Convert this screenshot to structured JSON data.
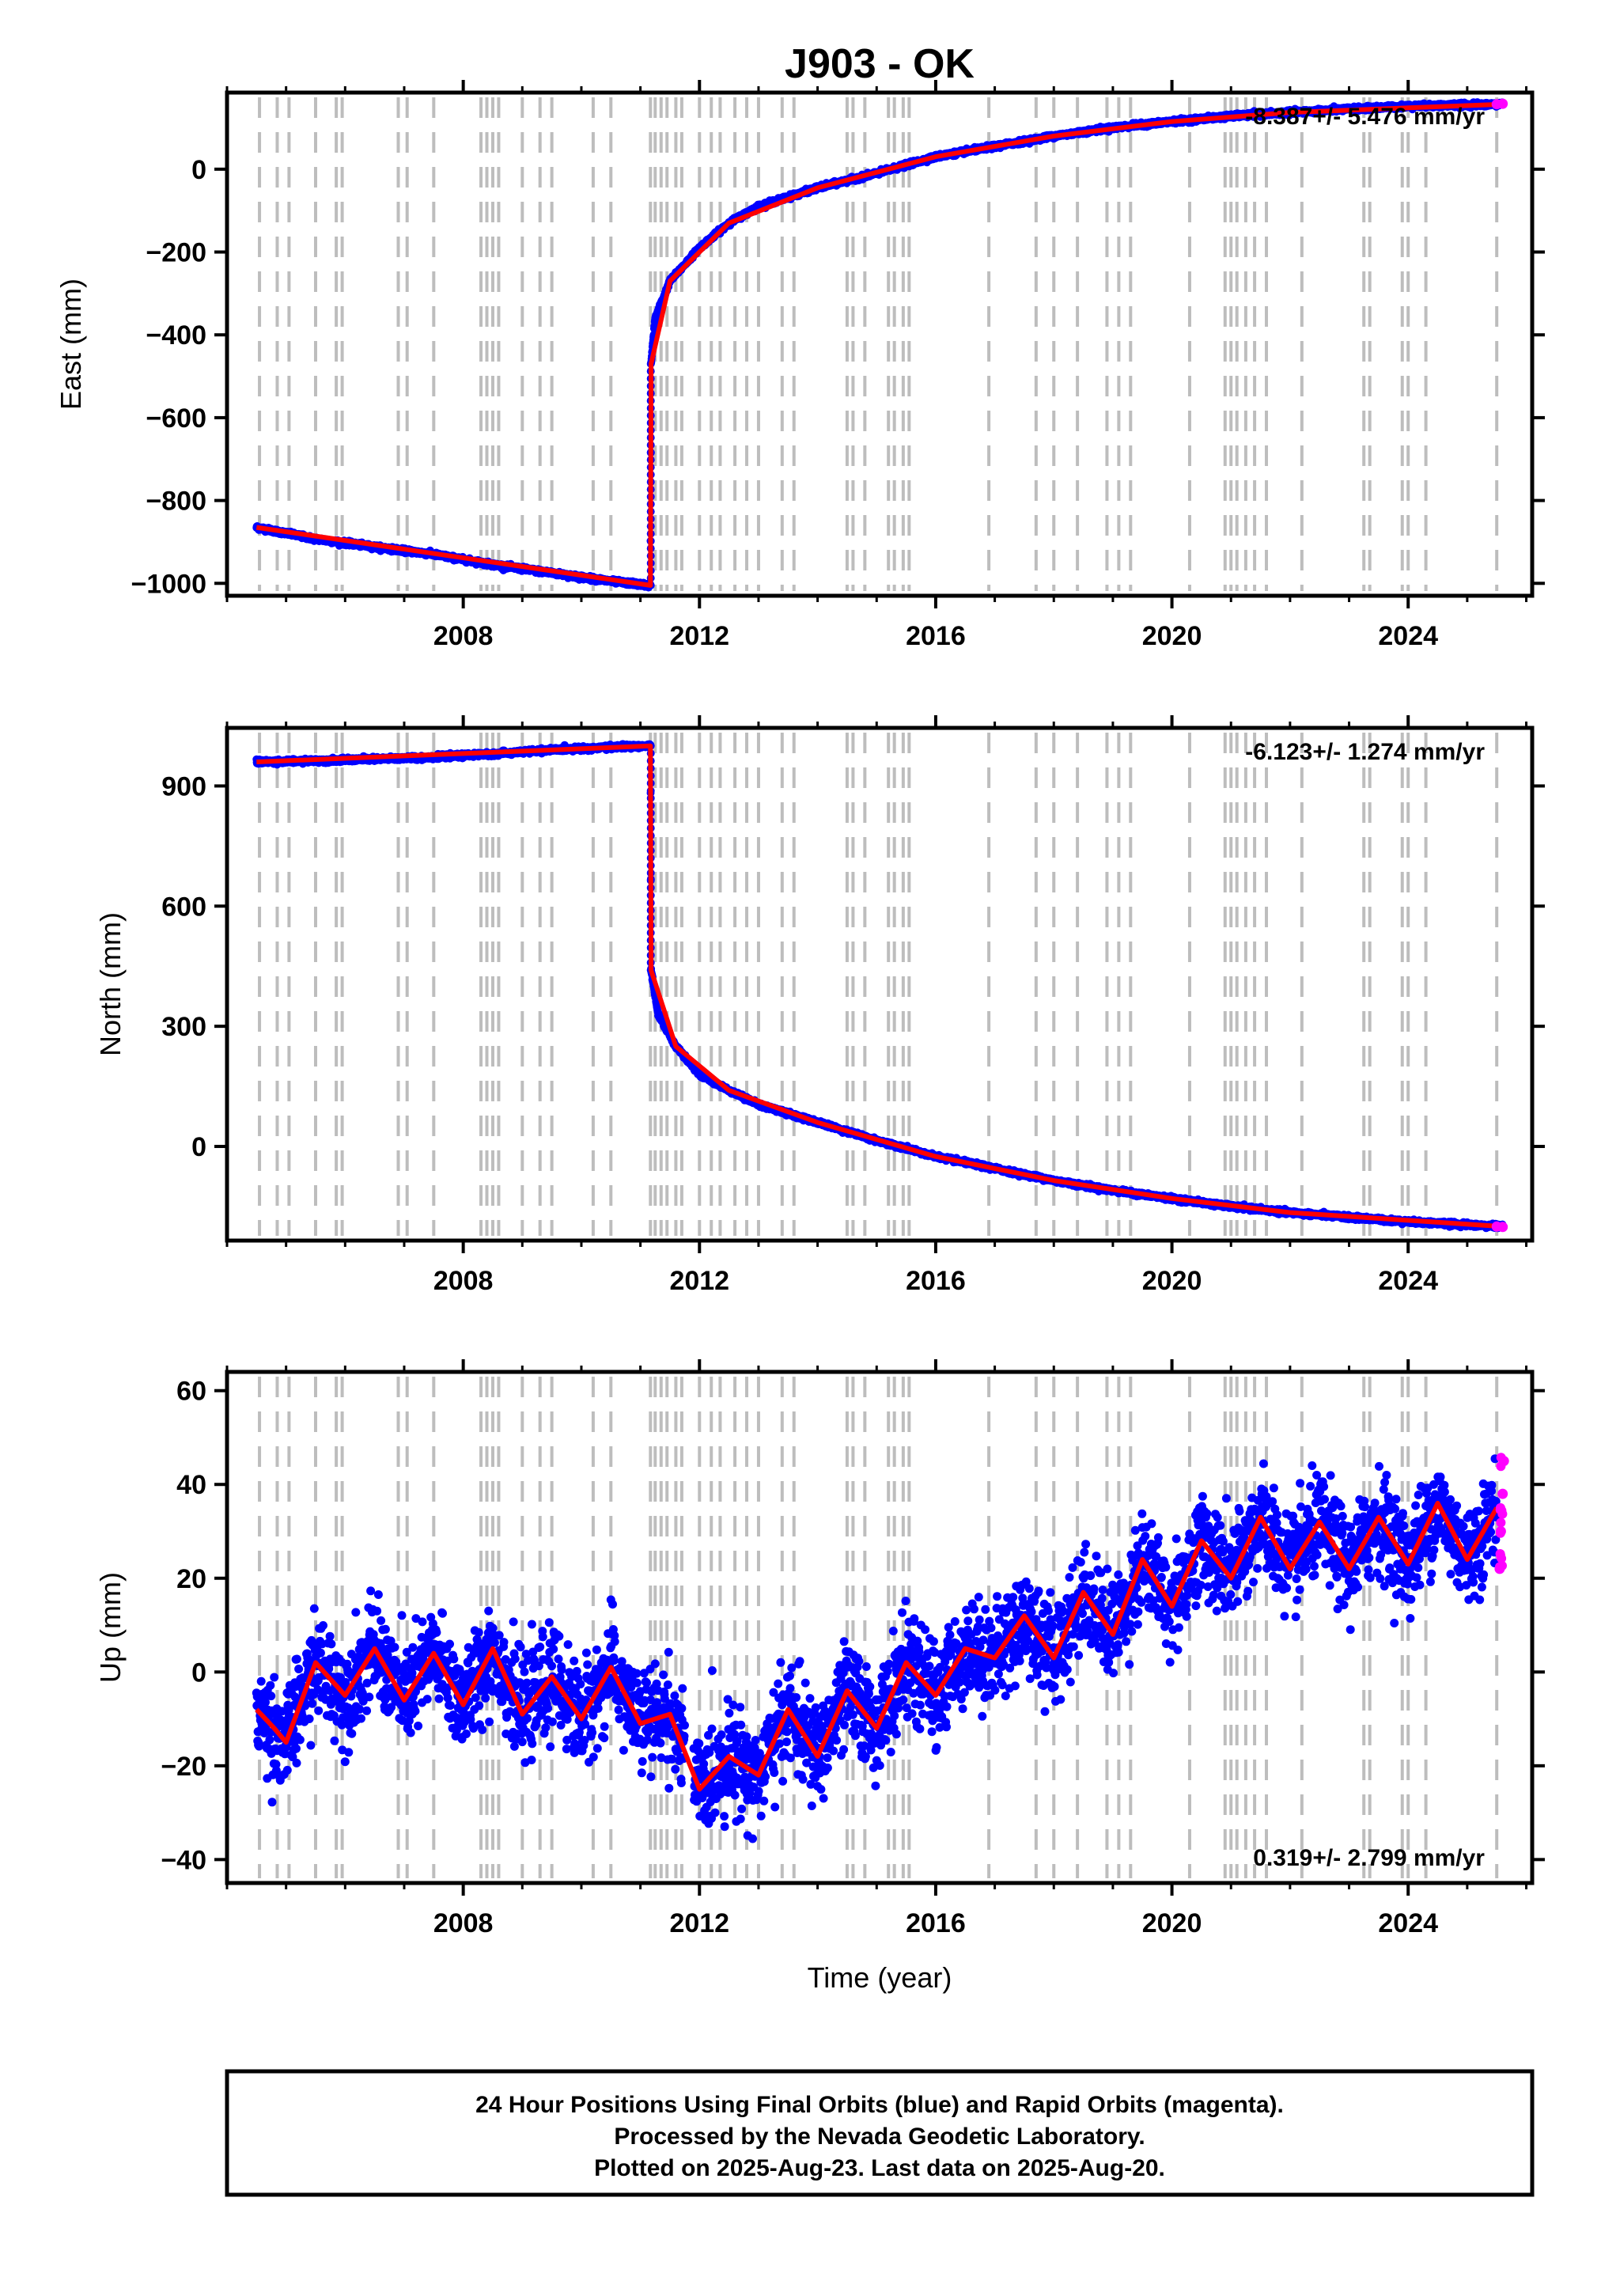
{
  "chart_data": {
    "title": "J903 - OK",
    "type": "scatter",
    "xlim": [
      2004.0,
      2026.1
    ],
    "x_ticks": [
      2008,
      2012,
      2016,
      2020,
      2024
    ],
    "xlabel": "Time (year)",
    "grid": false,
    "event_lines_years": [
      2004.55,
      2004.85,
      2005.05,
      2005.5,
      2005.85,
      2005.95,
      2006.9,
      2007.05,
      2007.5,
      2008.3,
      2008.4,
      2008.5,
      2008.6,
      2009.0,
      2009.3,
      2009.5,
      2010.2,
      2010.5,
      2011.17,
      2011.25,
      2011.35,
      2011.45,
      2011.6,
      2011.7,
      2012.0,
      2012.2,
      2012.35,
      2012.6,
      2012.8,
      2013.0,
      2013.4,
      2013.6,
      2014.5,
      2014.6,
      2014.8,
      2015.2,
      2015.3,
      2015.45,
      2015.55,
      2016.9,
      2017.7,
      2018.0,
      2018.4,
      2018.9,
      2019.1,
      2019.3,
      2020.3,
      2020.9,
      2021.0,
      2021.1,
      2021.25,
      2021.4,
      2021.6,
      2022.2,
      2023.25,
      2023.35,
      2023.9,
      2024.0,
      2024.3,
      2025.5
    ],
    "panels": [
      {
        "ylabel": "East (mm)",
        "ylim": [
          -1030,
          185
        ],
        "y_ticks": [
          0,
          -200,
          -400,
          -600,
          -800,
          -1000
        ],
        "y_tick_labels": [
          "0",
          "−200",
          "−400",
          "−600",
          "−800",
          "−1000"
        ],
        "velocity_label": "-8.387+/- 5.476 mm/yr",
        "velocity_position": "top-right",
        "series": [
          {
            "role": "final-orbits",
            "color": "#0000ff",
            "points": [
              [
                2004.5,
                -865
              ],
              [
                2005.5,
                -893
              ],
              [
                2006.5,
                -912
              ],
              [
                2007.5,
                -930
              ],
              [
                2008.5,
                -955
              ],
              [
                2009.5,
                -975
              ],
              [
                2010.5,
                -995
              ],
              [
                2011.17,
                -1005
              ],
              [
                2011.18,
                -470
              ],
              [
                2011.25,
                -360
              ],
              [
                2011.5,
                -270
              ],
              [
                2012.0,
                -190
              ],
              [
                2012.5,
                -130
              ],
              [
                2013.0,
                -90
              ],
              [
                2014.0,
                -45
              ],
              [
                2015.0,
                -10
              ],
              [
                2016.0,
                30
              ],
              [
                2017.0,
                55
              ],
              [
                2018.0,
                80
              ],
              [
                2019.0,
                100
              ],
              [
                2020.0,
                115
              ],
              [
                2021.0,
                128
              ],
              [
                2022.0,
                137
              ],
              [
                2023.0,
                145
              ],
              [
                2024.0,
                152
              ],
              [
                2025.6,
                157
              ]
            ]
          },
          {
            "role": "rapid-orbits",
            "color": "#ff00ff",
            "points": [
              [
                2025.5,
                157
              ],
              [
                2025.6,
                158
              ]
            ]
          },
          {
            "role": "model-fit",
            "color": "#ff0000",
            "points": [
              [
                2004.5,
                -865
              ],
              [
                2011.17,
                -1005
              ],
              [
                2011.18,
                -470
              ],
              [
                2011.5,
                -270
              ],
              [
                2012.5,
                -130
              ],
              [
                2014.0,
                -45
              ],
              [
                2016.0,
                30
              ],
              [
                2018.0,
                80
              ],
              [
                2020.0,
                115
              ],
              [
                2022.0,
                137
              ],
              [
                2025.6,
                157
              ]
            ]
          }
        ]
      },
      {
        "ylabel": "North (mm)",
        "ylim": [
          -235,
          1045
        ],
        "y_ticks": [
          900,
          600,
          300,
          0
        ],
        "y_tick_labels": [
          "900",
          "600",
          "300",
          "0"
        ],
        "velocity_label": "-6.123+/- 1.274 mm/yr",
        "velocity_position": "top-right",
        "series": [
          {
            "role": "final-orbits",
            "color": "#0000ff",
            "points": [
              [
                2004.5,
                960
              ],
              [
                2005.5,
                963
              ],
              [
                2006.5,
                967
              ],
              [
                2007.5,
                972
              ],
              [
                2008.5,
                980
              ],
              [
                2009.5,
                990
              ],
              [
                2010.5,
                997
              ],
              [
                2011.17,
                1000
              ],
              [
                2011.18,
                440
              ],
              [
                2011.3,
                330
              ],
              [
                2011.6,
                250
              ],
              [
                2012.0,
                180
              ],
              [
                2012.5,
                140
              ],
              [
                2013.0,
                105
              ],
              [
                2014.0,
                60
              ],
              [
                2015.0,
                15
              ],
              [
                2016.0,
                -25
              ],
              [
                2017.0,
                -55
              ],
              [
                2018.0,
                -85
              ],
              [
                2019.0,
                -110
              ],
              [
                2020.0,
                -130
              ],
              [
                2021.0,
                -150
              ],
              [
                2022.0,
                -165
              ],
              [
                2023.0,
                -177
              ],
              [
                2024.0,
                -188
              ],
              [
                2025.6,
                -200
              ]
            ]
          },
          {
            "role": "rapid-orbits",
            "color": "#ff00ff",
            "points": [
              [
                2025.5,
                -200
              ],
              [
                2025.6,
                -201
              ]
            ]
          },
          {
            "role": "model-fit",
            "color": "#ff0000",
            "points": [
              [
                2004.5,
                960
              ],
              [
                2011.17,
                1000
              ],
              [
                2011.18,
                440
              ],
              [
                2011.6,
                250
              ],
              [
                2012.5,
                140
              ],
              [
                2014.0,
                60
              ],
              [
                2016.0,
                -25
              ],
              [
                2018.0,
                -85
              ],
              [
                2020.0,
                -130
              ],
              [
                2022.0,
                -165
              ],
              [
                2025.6,
                -200
              ]
            ]
          }
        ]
      },
      {
        "ylabel": "Up (mm)",
        "ylim": [
          -45,
          64
        ],
        "y_ticks": [
          60,
          40,
          20,
          0,
          -20,
          -40
        ],
        "y_tick_labels": [
          "60",
          "40",
          "20",
          "0",
          "−20",
          "−40"
        ],
        "velocity_label": "0.319+/- 2.799 mm/yr",
        "velocity_position": "bottom-right",
        "series": [
          {
            "role": "final-orbits",
            "color": "#0000ff",
            "points": [
              [
                2004.5,
                -8
              ],
              [
                2004.8,
                -12
              ],
              [
                2005.0,
                -15
              ],
              [
                2005.5,
                2
              ],
              [
                2006.0,
                -5
              ],
              [
                2006.5,
                5
              ],
              [
                2007.0,
                -6
              ],
              [
                2007.5,
                4
              ],
              [
                2008.0,
                -7
              ],
              [
                2008.5,
                5
              ],
              [
                2009.0,
                -9
              ],
              [
                2009.5,
                -1
              ],
              [
                2010.0,
                -10
              ],
              [
                2010.5,
                1
              ],
              [
                2011.0,
                -11
              ],
              [
                2011.5,
                -9
              ],
              [
                2012.0,
                -25
              ],
              [
                2012.5,
                -18
              ],
              [
                2013.0,
                -22
              ],
              [
                2013.5,
                -8
              ],
              [
                2014.0,
                -18
              ],
              [
                2014.5,
                -4
              ],
              [
                2015.0,
                -12
              ],
              [
                2015.5,
                2
              ],
              [
                2016.0,
                -5
              ],
              [
                2016.5,
                5
              ],
              [
                2017.0,
                3
              ],
              [
                2017.5,
                12
              ],
              [
                2018.0,
                3
              ],
              [
                2018.5,
                17
              ],
              [
                2019.0,
                8
              ],
              [
                2019.5,
                24
              ],
              [
                2020.0,
                14
              ],
              [
                2020.5,
                28
              ],
              [
                2021.0,
                20
              ],
              [
                2021.5,
                33
              ],
              [
                2022.0,
                22
              ],
              [
                2022.5,
                32
              ],
              [
                2023.0,
                22
              ],
              [
                2023.5,
                33
              ],
              [
                2024.0,
                23
              ],
              [
                2024.5,
                36
              ],
              [
                2025.0,
                24
              ],
              [
                2025.5,
                35
              ]
            ]
          },
          {
            "role": "rapid-orbits",
            "color": "#ff00ff",
            "points": [
              [
                2025.55,
                22
              ],
              [
                2025.57,
                30
              ],
              [
                2025.6,
                38
              ],
              [
                2025.62,
                45
              ]
            ]
          },
          {
            "role": "model-fit",
            "color": "#ff0000",
            "points": [
              [
                2004.5,
                -8
              ],
              [
                2004.8,
                -12
              ],
              [
                2005.0,
                -15
              ],
              [
                2005.5,
                2
              ],
              [
                2006.0,
                -5
              ],
              [
                2006.5,
                5
              ],
              [
                2007.0,
                -6
              ],
              [
                2007.5,
                4
              ],
              [
                2008.0,
                -7
              ],
              [
                2008.5,
                5
              ],
              [
                2009.0,
                -9
              ],
              [
                2009.5,
                -1
              ],
              [
                2010.0,
                -10
              ],
              [
                2010.5,
                1
              ],
              [
                2011.0,
                -11
              ],
              [
                2011.5,
                -9
              ],
              [
                2012.0,
                -25
              ],
              [
                2012.5,
                -18
              ],
              [
                2013.0,
                -22
              ],
              [
                2013.5,
                -8
              ],
              [
                2014.0,
                -18
              ],
              [
                2014.5,
                -4
              ],
              [
                2015.0,
                -12
              ],
              [
                2015.5,
                2
              ],
              [
                2016.0,
                -5
              ],
              [
                2016.5,
                5
              ],
              [
                2017.0,
                3
              ],
              [
                2017.5,
                12
              ],
              [
                2018.0,
                3
              ],
              [
                2018.5,
                17
              ],
              [
                2019.0,
                8
              ],
              [
                2019.5,
                24
              ],
              [
                2020.0,
                14
              ],
              [
                2020.5,
                28
              ],
              [
                2021.0,
                20
              ],
              [
                2021.5,
                33
              ],
              [
                2022.0,
                22
              ],
              [
                2022.5,
                32
              ],
              [
                2023.0,
                22
              ],
              [
                2023.5,
                33
              ],
              [
                2024.0,
                23
              ],
              [
                2024.5,
                36
              ],
              [
                2025.0,
                24
              ],
              [
                2025.5,
                35
              ]
            ]
          }
        ]
      }
    ]
  },
  "footer": {
    "line1": "24 Hour Positions Using Final Orbits (blue) and Rapid Orbits (magenta).",
    "line2": "Processed by the Nevada Geodetic Laboratory.",
    "line3": "Plotted on 2025-Aug-23. Last data on 2025-Aug-20."
  }
}
